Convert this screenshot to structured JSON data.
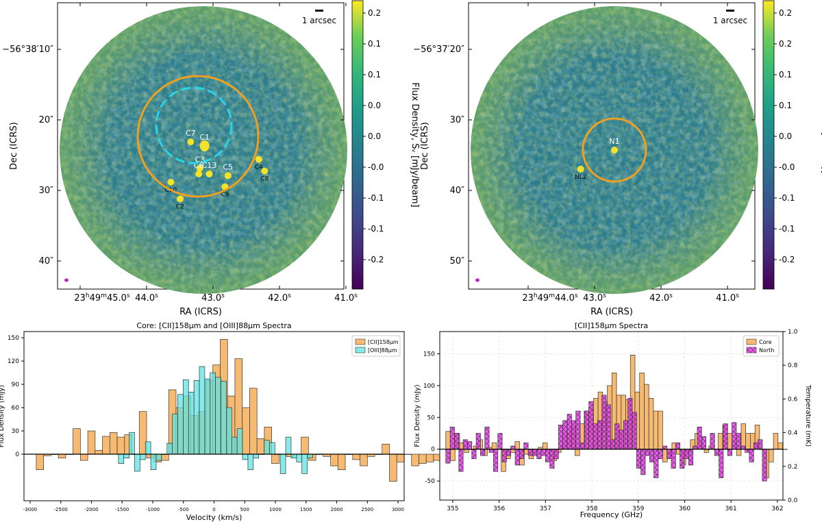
{
  "chart_data": [
    {
      "type": "heatmap",
      "panel": "top-left",
      "xlabel": "RA (ICRS)",
      "ylabel": "Dec (ICRS)",
      "x_ticks": [
        {
          "h": "23",
          "m": "49",
          "s": "45.0",
          "suffix": "s",
          "full": true
        },
        {
          "s": "44.0",
          "suffix": "s"
        },
        {
          "s": "43.0",
          "suffix": "s"
        },
        {
          "s": "42.0",
          "suffix": "s"
        },
        {
          "s": "41.0",
          "suffix": "s"
        }
      ],
      "y_ticks": [
        "−56°38′10″",
        "20″",
        "30″",
        "40″"
      ],
      "scalebar_label": "1 arcsec",
      "colorbar": {
        "label": "Flux Density, Sᵥ [mJy/beam]",
        "ticks": [
          "0.2",
          "0.1",
          "0.1",
          "0.0",
          "0.0",
          "-0.0",
          "-0.1",
          "-0.1",
          "-0.2"
        ]
      },
      "sources": [
        {
          "name": "C1",
          "dx": 0.02,
          "dy": -0.07,
          "label_color": "#ffffff"
        },
        {
          "name": "C7",
          "dx": -0.22,
          "dy": -0.14,
          "label_color": "#ffffff"
        },
        {
          "name": "C3",
          "dx": -0.06,
          "dy": 0.31,
          "label_color": "#ffffff"
        },
        {
          "name": "C6",
          "dx": -0.08,
          "dy": 0.41,
          "label_color": "#ffffff"
        },
        {
          "name": "C13",
          "dx": 0.1,
          "dy": 0.41,
          "label_color": "#ffffff"
        },
        {
          "name": "C5",
          "dx": 0.42,
          "dy": 0.44,
          "label_color": "#ffffff"
        },
        {
          "name": "C4",
          "dx": 0.95,
          "dy": 0.16,
          "label_color": "#000000"
        },
        {
          "name": "C8",
          "dx": 1.05,
          "dy": 0.36,
          "label_color": "#000000"
        },
        {
          "name": "C10",
          "dx": -0.56,
          "dy": 0.55,
          "label_color": "#000000"
        },
        {
          "name": "C9",
          "dx": 0.37,
          "dy": 0.63,
          "label_color": "#000000"
        },
        {
          "name": "C2",
          "dx": -0.4,
          "dy": 0.84,
          "label_color": "#000000"
        }
      ]
    },
    {
      "type": "heatmap",
      "panel": "top-right",
      "xlabel": "RA (ICRS)",
      "ylabel": "Dec (ICRS)",
      "x_ticks": [
        {
          "h": "23",
          "m": "49",
          "s": "44.0",
          "suffix": "s",
          "full": true
        },
        {
          "s": "43.0",
          "suffix": "s"
        },
        {
          "s": "42.0",
          "suffix": "s"
        },
        {
          "s": "41.0",
          "suffix": "s"
        }
      ],
      "y_ticks": [
        "−56°37′20″",
        "30″",
        "40″",
        "50″"
      ],
      "scalebar_label": "1 arcsec",
      "colorbar": {
        "label": "Flux Density, Sᵥ [mJy/beam]",
        "ticks": [
          "0.2",
          "0.2",
          "0.1",
          "0.1",
          "0.0",
          "-0.0",
          "-0.1",
          "-0.1",
          "-0.2"
        ]
      },
      "sources": [
        {
          "name": "N1",
          "dx": 0.0,
          "dy": 0.0,
          "label_color": "#ffffff"
        },
        {
          "name": "NL2",
          "dx": -0.58,
          "dy": 0.33,
          "label_color": "#000000"
        }
      ]
    },
    {
      "type": "bar",
      "panel": "bottom-left",
      "title": "Core: [CII]158μm and [OIII]88μm Spectra",
      "xlabel": "Velocity (km/s)",
      "ylabel": "Flux Density (mJy)",
      "xlim": [
        -3100,
        3100
      ],
      "ylim": [
        -60,
        158
      ],
      "xticks": [
        -3000,
        -2500,
        -2000,
        -1500,
        -1000,
        -500,
        0,
        500,
        1000,
        1500,
        2000,
        2500,
        3000
      ],
      "yticks": [
        0,
        30,
        60,
        90,
        120,
        150
      ],
      "legend": "top-right",
      "series": [
        {
          "name": "[CII]158μm",
          "color": "#f5b66a",
          "x_start": -2900,
          "bin_width": 120,
          "values": [
            -20,
            -2,
            0,
            -5,
            0,
            33,
            -8,
            30,
            5,
            23,
            28,
            22,
            25,
            0,
            55,
            -5,
            -10,
            -8,
            83,
            60,
            75,
            50,
            55,
            95,
            115,
            148,
            75,
            123,
            60,
            85,
            20,
            35,
            -12,
            0,
            -3,
            0,
            22,
            -8,
            0,
            -3,
            -15,
            -20,
            0,
            -7,
            -15,
            -3,
            0,
            13,
            -35,
            -10,
            0,
            -15,
            -12,
            -10,
            -8,
            -20,
            -10,
            0,
            3,
            -10,
            15
          ]
        },
        {
          "name": "[OIII]88μm",
          "color": "#5ee3e3",
          "x_start": -1560,
          "bin_width": 88,
          "values": [
            -12,
            -5,
            28,
            -22,
            -7,
            16,
            -20,
            -8,
            0,
            14,
            52,
            77,
            96,
            80,
            95,
            113,
            97,
            105,
            99,
            94,
            60,
            22,
            33,
            -7,
            -20,
            -5,
            0,
            18,
            15,
            0,
            -25,
            22,
            -5,
            -10,
            -25,
            -5
          ]
        }
      ]
    },
    {
      "type": "bar",
      "panel": "bottom-right",
      "title": "[CII]158μm Spectra",
      "xlabel": "Frequency (GHz)",
      "ylabel": "Flux Density (mJy)",
      "y2label": "Temperature (mK)",
      "xlim": [
        354.72,
        362.12
      ],
      "ylim": [
        -80,
        185
      ],
      "y2lim": [
        0,
        1
      ],
      "xticks": [
        355,
        356,
        357,
        358,
        359,
        360,
        361,
        362
      ],
      "yticks": [
        -50,
        0,
        50,
        100,
        150
      ],
      "y2ticks": [
        "0.0",
        "0.2",
        "0.4",
        "0.6",
        "0.8",
        "1.0"
      ],
      "grid": true,
      "legend": "top-right",
      "series": [
        {
          "name": "Core",
          "color": "#f5b66a",
          "x_start": 354.85,
          "bin_width": 0.0995,
          "values": [
            28,
            -18,
            25,
            10,
            -5,
            0,
            5,
            15,
            -10,
            3,
            10,
            0,
            -35,
            -15,
            -5,
            12,
            -25,
            -8,
            -15,
            -5,
            3,
            10,
            0,
            -18,
            -5,
            5,
            25,
            35,
            -10,
            40,
            60,
            65,
            80,
            90,
            75,
            100,
            120,
            85,
            85,
            78,
            148,
            90,
            120,
            102,
            80,
            60,
            60,
            -20,
            -10,
            10,
            -8,
            -25,
            -5,
            15,
            25,
            5,
            -5,
            5,
            0,
            25,
            38,
            25,
            10,
            -10,
            40,
            25,
            25,
            38,
            0,
            -45,
            -20,
            25,
            10,
            0
          ]
        },
        {
          "name": "North",
          "color": "#ef3ef0",
          "x_start": 354.85,
          "bin_width": 0.0935,
          "values": [
            -22,
            35,
            25,
            -35,
            15,
            12,
            -15,
            25,
            -10,
            35,
            -5,
            -35,
            25,
            -20,
            -10,
            5,
            -25,
            -15,
            10,
            -10,
            -10,
            -15,
            -10,
            -20,
            -30,
            -15,
            38,
            45,
            55,
            45,
            60,
            10,
            60,
            75,
            40,
            45,
            85,
            70,
            15,
            40,
            30,
            45,
            80,
            58,
            -30,
            -40,
            -10,
            -20,
            -45,
            -15,
            5,
            -15,
            -30,
            10,
            -30,
            -15,
            -25,
            5,
            35,
            20,
            0,
            25,
            -10,
            -45,
            40,
            -10,
            42,
            25,
            5,
            -5,
            -20,
            10,
            15,
            -50
          ]
        }
      ]
    }
  ]
}
